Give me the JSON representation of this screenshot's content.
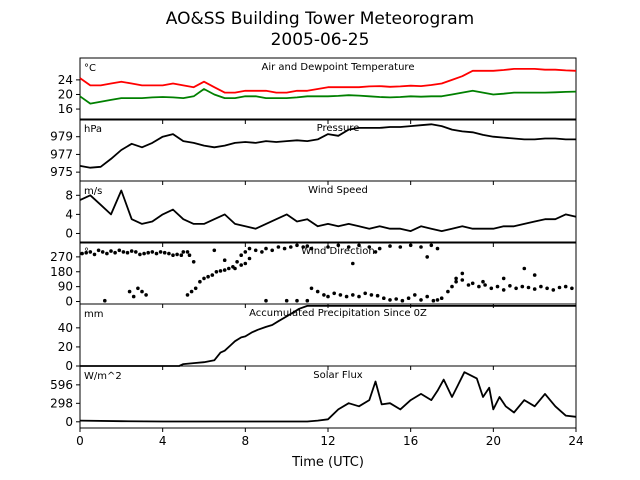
{
  "title_line1": "AO&SS Building Tower Meteorogram",
  "title_line2": "2005-06-25",
  "xlabel": "Time (UTC)",
  "colors": {
    "temperature": "#ff0000",
    "dewpoint": "#008000",
    "default": "#000000"
  },
  "chart_data": [
    {
      "type": "line",
      "title": "Air and Dewpoint Temperature",
      "unit": "°C",
      "ylim": [
        13,
        30
      ],
      "yticks": [
        16,
        20,
        24
      ],
      "xlim": [
        0,
        24
      ],
      "series": [
        {
          "color_key": "temperature",
          "x": [
            0,
            0.5,
            1,
            1.5,
            2,
            2.5,
            3,
            3.5,
            4,
            4.5,
            5,
            5.5,
            6,
            6.5,
            7,
            7.5,
            8,
            8.5,
            9,
            9.5,
            10,
            10.5,
            11,
            11.5,
            12,
            12.5,
            13,
            13.5,
            14,
            14.5,
            15,
            15.5,
            16,
            16.5,
            17,
            17.5,
            18,
            18.5,
            19,
            19.5,
            20,
            20.5,
            21,
            21.5,
            22,
            22.5,
            23,
            23.5,
            24
          ],
          "y": [
            24.5,
            22.5,
            22.5,
            23,
            23.5,
            23,
            22.5,
            22.5,
            22.5,
            23,
            22.5,
            22,
            23.5,
            22,
            20.5,
            20.5,
            21,
            21,
            21,
            20.5,
            20.5,
            21,
            21,
            21.5,
            22,
            22,
            22,
            22,
            22.2,
            22.3,
            22.1,
            22.2,
            22.4,
            22.3,
            22.6,
            23,
            24,
            25,
            26.5,
            26.5,
            26.5,
            26.7,
            27,
            27,
            27,
            26.8,
            26.8,
            26.6,
            26.5
          ]
        },
        {
          "color_key": "dewpoint",
          "x": [
            0,
            0.5,
            1,
            1.5,
            2,
            2.5,
            3,
            3.5,
            4,
            4.5,
            5,
            5.5,
            6,
            6.5,
            7,
            7.5,
            8,
            8.5,
            9,
            9.5,
            10,
            10.5,
            11,
            11.5,
            12,
            12.5,
            13,
            13.5,
            14,
            14.5,
            15,
            15.5,
            16,
            16.5,
            17,
            17.5,
            18,
            18.5,
            19,
            19.5,
            20,
            20.5,
            21,
            21.5,
            22,
            22.5,
            23,
            23.5,
            24
          ],
          "y": [
            19.5,
            17.5,
            18,
            18.5,
            19,
            19,
            19,
            19.2,
            19.3,
            19.2,
            19,
            19.5,
            21.5,
            20,
            19,
            19,
            19.5,
            19.5,
            19,
            19,
            19,
            19.2,
            19.5,
            19.5,
            19.5,
            19.6,
            19.8,
            19.7,
            19.5,
            19.3,
            19.2,
            19.3,
            19.5,
            19.4,
            19.5,
            19.5,
            20,
            20.5,
            21,
            20.5,
            20,
            20.2,
            20.5,
            20.5,
            20.5,
            20.5,
            20.6,
            20.7,
            20.8
          ]
        }
      ]
    },
    {
      "type": "line",
      "title": "Pressure",
      "unit": "hPa",
      "ylim": [
        974,
        981
      ],
      "yticks": [
        975,
        977,
        979
      ],
      "xlim": [
        0,
        24
      ],
      "series": [
        {
          "color_key": "default",
          "x": [
            0,
            0.5,
            1,
            1.5,
            2,
            2.5,
            3,
            3.5,
            4,
            4.5,
            5,
            5.5,
            6,
            6.5,
            7,
            7.5,
            8,
            8.5,
            9,
            9.5,
            10,
            10.5,
            11,
            11.5,
            12,
            12.5,
            13,
            13.5,
            14,
            14.5,
            15,
            15.5,
            16,
            16.5,
            17,
            17.5,
            18,
            18.5,
            19,
            19.5,
            20,
            20.5,
            21,
            21.5,
            22,
            22.5,
            23,
            23.5,
            24
          ],
          "y": [
            975.7,
            975.5,
            975.6,
            976.5,
            977.5,
            978.2,
            977.8,
            978.3,
            979,
            979.3,
            978.5,
            978.3,
            978,
            977.8,
            978,
            978.3,
            978.4,
            978.3,
            978.5,
            978.4,
            978.5,
            978.6,
            978.5,
            978.7,
            979.3,
            979.1,
            979.8,
            980,
            980,
            980,
            980.1,
            980.1,
            980.2,
            980.3,
            980.4,
            980.2,
            979.8,
            979.6,
            979.5,
            979.2,
            979,
            978.9,
            978.8,
            978.7,
            978.7,
            978.8,
            978.8,
            978.7,
            978.7
          ]
        }
      ]
    },
    {
      "type": "line",
      "title": "Wind Speed",
      "unit": "m/s",
      "ylim": [
        -2,
        11
      ],
      "yticks": [
        0,
        4,
        8
      ],
      "xlim": [
        0,
        24
      ],
      "series": [
        {
          "color_key": "default",
          "x": [
            0,
            0.5,
            1,
            1.5,
            2,
            2.5,
            3,
            3.5,
            4,
            4.5,
            5,
            5.5,
            6,
            6.5,
            7,
            7.5,
            8,
            8.5,
            9,
            9.5,
            10,
            10.5,
            11,
            11.5,
            12,
            12.5,
            13,
            13.5,
            14,
            14.5,
            15,
            15.5,
            16,
            16.5,
            17,
            17.5,
            18,
            18.5,
            19,
            19.5,
            20,
            20.5,
            21,
            21.5,
            22,
            22.5,
            23,
            23.5,
            24
          ],
          "y": [
            7,
            8,
            6,
            4,
            9,
            3,
            2,
            2.5,
            4,
            5,
            3,
            2,
            2,
            3,
            4,
            2,
            1.5,
            1,
            2,
            3,
            4,
            2.5,
            3,
            1.5,
            2,
            1.5,
            2,
            1.5,
            1,
            1.5,
            1,
            1,
            0.5,
            1.5,
            1,
            0.5,
            1,
            1.5,
            1,
            1,
            1,
            1.5,
            1.5,
            2,
            2.5,
            3,
            3,
            4,
            3.5
          ]
        }
      ]
    },
    {
      "type": "scatter",
      "title": "Wind Direction",
      "unit": "°",
      "ylim": [
        -15,
        360
      ],
      "yticks": [
        0,
        90,
        180,
        270
      ],
      "xlim": [
        0,
        24
      ],
      "points": [
        [
          0.1,
          290
        ],
        [
          0.3,
          295
        ],
        [
          0.5,
          300
        ],
        [
          0.7,
          285
        ],
        [
          0.9,
          310
        ],
        [
          1.1,
          300
        ],
        [
          1.3,
          290
        ],
        [
          1.5,
          305
        ],
        [
          1.7,
          295
        ],
        [
          1.9,
          310
        ],
        [
          2.1,
          300
        ],
        [
          2.3,
          295
        ],
        [
          2.5,
          305
        ],
        [
          2.7,
          300
        ],
        [
          2.9,
          285
        ],
        [
          3.1,
          290
        ],
        [
          3.3,
          295
        ],
        [
          3.5,
          300
        ],
        [
          3.7,
          290
        ],
        [
          3.9,
          300
        ],
        [
          4.1,
          295
        ],
        [
          4.3,
          290
        ],
        [
          4.5,
          280
        ],
        [
          4.7,
          285
        ],
        [
          4.9,
          280
        ],
        [
          1.2,
          5
        ],
        [
          2.4,
          60
        ],
        [
          2.6,
          30
        ],
        [
          2.8,
          80
        ],
        [
          3.0,
          60
        ],
        [
          3.2,
          40
        ],
        [
          5.3,
          280
        ],
        [
          5.5,
          240
        ],
        [
          5.2,
          300
        ],
        [
          5.0,
          300
        ],
        [
          6.5,
          310
        ],
        [
          7.0,
          250
        ],
        [
          7.5,
          200
        ],
        [
          7.8,
          220
        ],
        [
          8.0,
          230
        ],
        [
          8.2,
          260
        ],
        [
          5.2,
          40
        ],
        [
          5.4,
          60
        ],
        [
          5.6,
          80
        ],
        [
          5.8,
          120
        ],
        [
          6.0,
          140
        ],
        [
          6.2,
          150
        ],
        [
          6.4,
          160
        ],
        [
          6.6,
          180
        ],
        [
          6.8,
          185
        ],
        [
          7.0,
          190
        ],
        [
          7.2,
          200
        ],
        [
          7.4,
          210
        ],
        [
          7.6,
          240
        ],
        [
          7.8,
          280
        ],
        [
          8.0,
          300
        ],
        [
          8.2,
          320
        ],
        [
          8.5,
          310
        ],
        [
          8.8,
          300
        ],
        [
          9.0,
          320
        ],
        [
          9.3,
          310
        ],
        [
          9.6,
          330
        ],
        [
          9.9,
          320
        ],
        [
          10.2,
          330
        ],
        [
          10.5,
          340
        ],
        [
          10.8,
          330
        ],
        [
          11.0,
          335
        ],
        [
          11.2,
          320
        ],
        [
          9.0,
          5
        ],
        [
          10.0,
          5
        ],
        [
          10.5,
          5
        ],
        [
          11.0,
          5
        ],
        [
          11.2,
          80
        ],
        [
          11.5,
          60
        ],
        [
          11.8,
          40
        ],
        [
          12.0,
          30
        ],
        [
          12.3,
          50
        ],
        [
          12.6,
          40
        ],
        [
          12.9,
          30
        ],
        [
          13.2,
          40
        ],
        [
          13.5,
          30
        ],
        [
          13.8,
          50
        ],
        [
          14.1,
          40
        ],
        [
          14.4,
          35
        ],
        [
          14.7,
          20
        ],
        [
          15.0,
          10
        ],
        [
          15.3,
          15
        ],
        [
          15.6,
          5
        ],
        [
          15.9,
          20
        ],
        [
          16.2,
          40
        ],
        [
          16.5,
          10
        ],
        [
          16.8,
          30
        ],
        [
          17.1,
          5
        ],
        [
          17.3,
          10
        ],
        [
          12.0,
          330
        ],
        [
          12.5,
          340
        ],
        [
          13.0,
          330
        ],
        [
          13.5,
          340
        ],
        [
          14.0,
          330
        ],
        [
          14.5,
          320
        ],
        [
          15.0,
          335
        ],
        [
          15.5,
          330
        ],
        [
          16.0,
          340
        ],
        [
          16.5,
          330
        ],
        [
          17.0,
          340
        ],
        [
          17.3,
          320
        ],
        [
          13.2,
          230
        ],
        [
          14.3,
          300
        ],
        [
          16.8,
          270
        ],
        [
          17.5,
          20
        ],
        [
          17.8,
          60
        ],
        [
          18.0,
          90
        ],
        [
          18.2,
          120
        ],
        [
          18.5,
          130
        ],
        [
          18.8,
          100
        ],
        [
          19.0,
          110
        ],
        [
          19.3,
          90
        ],
        [
          19.6,
          100
        ],
        [
          19.9,
          80
        ],
        [
          20.2,
          90
        ],
        [
          20.5,
          70
        ],
        [
          20.8,
          95
        ],
        [
          21.1,
          80
        ],
        [
          21.4,
          90
        ],
        [
          21.7,
          85
        ],
        [
          22.0,
          75
        ],
        [
          22.3,
          90
        ],
        [
          22.6,
          80
        ],
        [
          22.9,
          70
        ],
        [
          23.2,
          85
        ],
        [
          23.5,
          90
        ],
        [
          23.8,
          80
        ],
        [
          18.5,
          170
        ],
        [
          19.5,
          120
        ],
        [
          20.5,
          140
        ],
        [
          21.5,
          200
        ],
        [
          22.0,
          160
        ],
        [
          18.2,
          140
        ]
      ]
    },
    {
      "type": "line",
      "title": "Accumulated Precipitation Since 0Z",
      "unit": "mm",
      "ylim": [
        0,
        65
      ],
      "yticks": [
        0,
        20,
        40
      ],
      "xlim": [
        0,
        24
      ],
      "series": [
        {
          "color_key": "default",
          "x": [
            0,
            2,
            4,
            4.8,
            5,
            5.5,
            6,
            6.5,
            6.8,
            7,
            7.3,
            7.5,
            7.8,
            8,
            8.3,
            8.6,
            9,
            9.3,
            9.6,
            10,
            10.3,
            10.6,
            11,
            12,
            16,
            20,
            24
          ],
          "y": [
            0,
            0,
            0,
            0,
            2,
            3,
            4,
            6,
            14,
            16,
            22,
            26,
            30,
            31,
            35,
            38,
            41,
            43,
            47,
            52,
            56,
            60,
            63,
            63,
            63,
            63,
            63
          ]
        }
      ]
    },
    {
      "type": "line",
      "title": "Solar Flux",
      "unit": "W/m^2",
      "ylim": [
        -100,
        900
      ],
      "yticks": [
        0,
        298,
        596
      ],
      "xlim": [
        0,
        24
      ],
      "series": [
        {
          "color_key": "default",
          "x": [
            0,
            2,
            4,
            6,
            8,
            10,
            11,
            11.5,
            12,
            12.5,
            13,
            13.5,
            14,
            14.3,
            14.6,
            15,
            15.5,
            16,
            16.5,
            17,
            17.3,
            17.6,
            18,
            18.3,
            18.6,
            18.9,
            19.2,
            19.5,
            19.8,
            20,
            20.3,
            20.6,
            21,
            21.5,
            22,
            22.5,
            23,
            23.5,
            24
          ],
          "y": [
            20,
            10,
            5,
            5,
            5,
            5,
            5,
            20,
            40,
            200,
            300,
            250,
            350,
            650,
            280,
            300,
            200,
            350,
            450,
            350,
            500,
            680,
            400,
            600,
            800,
            750,
            700,
            400,
            550,
            200,
            400,
            250,
            150,
            350,
            250,
            450,
            250,
            100,
            80
          ]
        }
      ]
    }
  ],
  "x_ticks": [
    "0",
    "4",
    "8",
    "12",
    "16",
    "20",
    "24"
  ]
}
